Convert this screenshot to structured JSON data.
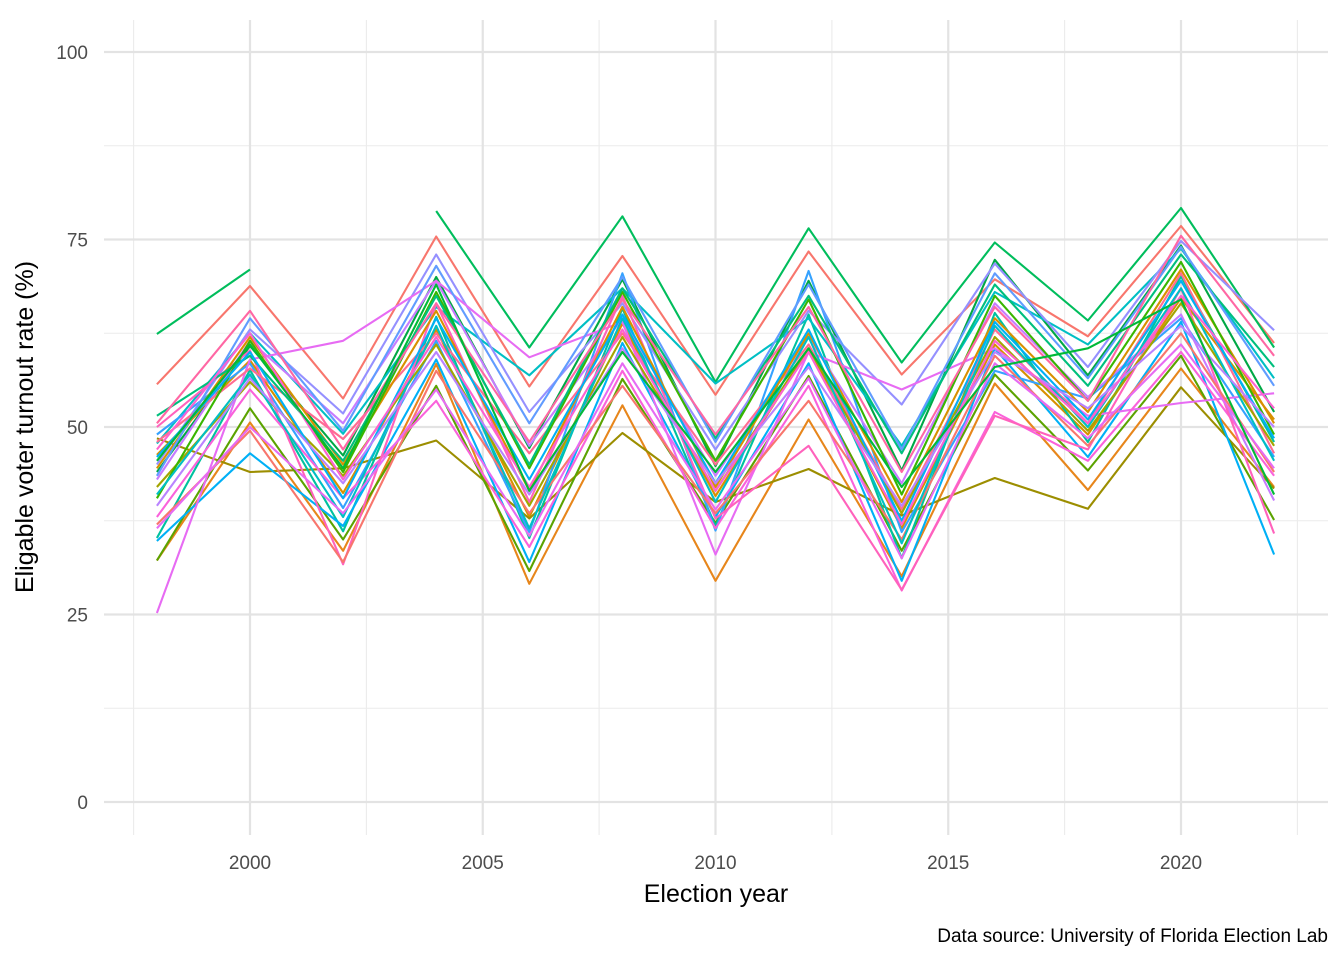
{
  "chart_data": {
    "type": "line",
    "xlabel": "Election year",
    "ylabel": "Eligable voter turnout rate (%)",
    "caption": "Data source: University of Florida Election Lab",
    "xlim": [
      1997.5,
      2022.5
    ],
    "ylim": [
      0,
      100
    ],
    "x_ticks": [
      2000,
      2005,
      2010,
      2015,
      2020
    ],
    "y_ticks": [
      0,
      25,
      50,
      75,
      100
    ],
    "grid": true,
    "legend": "none",
    "x": [
      1998,
      2000,
      2002,
      2004,
      2006,
      2008,
      2010,
      2012,
      2014,
      2016,
      2018,
      2020,
      2022
    ],
    "series": [
      {
        "color": "#F8766D",
        "values": [
          55.7,
          68.8,
          53.8,
          75.4,
          55.4,
          72.8,
          54.3,
          73.4,
          57.0,
          69.7,
          62.1,
          76.8,
          61.2
        ]
      },
      {
        "color": "#E7861B",
        "values": [
          32.2,
          50.6,
          33.5,
          58.4,
          29.1,
          52.9,
          29.5,
          51.0,
          30.1,
          55.8,
          41.6,
          57.8,
          42.0
        ]
      },
      {
        "color": "#D89000",
        "values": [
          46.3,
          58.9,
          41.2,
          63.0,
          38.0,
          63.8,
          40.8,
          60.3,
          36.5,
          61.0,
          49.0,
          67.2,
          51.0
        ]
      },
      {
        "color": "#9C8E00",
        "values": [
          48.5,
          44.0,
          44.5,
          48.2,
          37.8,
          49.2,
          40.0,
          44.4,
          38.2,
          43.2,
          39.1,
          55.3,
          41.8
        ]
      },
      {
        "color": "#5BA300",
        "values": [
          32.2,
          52.5,
          35.0,
          55.5,
          30.8,
          56.4,
          37.2,
          56.8,
          33.5,
          57.0,
          44.2,
          59.5,
          37.6
        ]
      },
      {
        "color": "#00A845",
        "values": [
          44.0,
          60.8,
          46.2,
          70.0,
          47.2,
          69.7,
          44.8,
          69.5,
          44.2,
          72.3,
          56.9,
          74.2,
          52.0
        ]
      },
      {
        "color": "#00BD5C",
        "values": [
          62.4,
          71.0,
          null,
          78.8,
          60.6,
          78.1,
          56.0,
          76.5,
          58.6,
          74.6,
          64.2,
          79.2,
          60.6
        ]
      },
      {
        "color": "#00C19F",
        "values": [
          35.2,
          57.6,
          36.1,
          64.7,
          35.2,
          65.8,
          36.8,
          65.0,
          32.5,
          65.2,
          48.0,
          70.1,
          48.0
        ]
      },
      {
        "color": "#00BFC4",
        "values": [
          47.8,
          62.5,
          49.1,
          66.0,
          56.9,
          68.5,
          55.8,
          64.5,
          47.5,
          68.0,
          61.0,
          73.8,
          56.5
        ]
      },
      {
        "color": "#00B0F6",
        "values": [
          34.8,
          46.5,
          36.8,
          59.0,
          32.0,
          61.2,
          38.0,
          58.5,
          29.5,
          60.5,
          46.0,
          64.0,
          33.0
        ]
      },
      {
        "color": "#35A2FF",
        "values": [
          49.0,
          58.5,
          39.2,
          61.5,
          36.0,
          70.5,
          36.2,
          70.8,
          36.0,
          57.5,
          53.8,
          64.5,
          46.0
        ]
      },
      {
        "color": "#9590FF",
        "values": [
          45.0,
          63.0,
          51.8,
          73.0,
          52.0,
          66.5,
          47.0,
          65.5,
          53.0,
          71.8,
          58.0,
          74.8,
          62.9
        ]
      },
      {
        "color": "#C77CFF",
        "values": [
          43.0,
          61.5,
          50.5,
          69.5,
          47.5,
          64.5,
          43.5,
          62.0,
          42.5,
          66.5,
          54.0,
          65.0,
          40.2
        ]
      },
      {
        "color": "#E76BF3",
        "values": [
          25.2,
          59.0,
          61.5,
          69.5,
          59.3,
          64.0,
          33.0,
          60.0,
          55.0,
          60.5,
          51.5,
          53.2,
          54.5
        ]
      },
      {
        "color": "#FA62DB",
        "values": [
          38.0,
          55.0,
          40.5,
          53.5,
          34.0,
          57.5,
          36.5,
          55.5,
          28.2,
          52.0,
          45.5,
          60.0,
          43.5
        ]
      },
      {
        "color": "#FF62BC",
        "values": [
          50.0,
          60.2,
          31.7,
          66.5,
          40.0,
          67.5,
          37.8,
          47.5,
          28.3,
          51.5,
          47.0,
          68.5,
          35.8
        ]
      },
      {
        "color": "#FF6C91",
        "values": [
          48.0,
          57.8,
          48.4,
          62.5,
          46.5,
          62.5,
          45.0,
          61.0,
          39.0,
          63.0,
          50.5,
          70.5,
          46.5
        ]
      },
      {
        "color": "#F8766D",
        "values": [
          37.0,
          49.5,
          32.0,
          57.5,
          38.5,
          55.5,
          38.5,
          53.5,
          35.0,
          59.5,
          47.5,
          62.5,
          44.0
        ]
      },
      {
        "color": "#D89000",
        "values": [
          44.5,
          62.0,
          45.0,
          65.5,
          41.5,
          66.0,
          42.0,
          62.5,
          40.0,
          64.5,
          52.0,
          71.0,
          50.5
        ]
      },
      {
        "color": "#A3A500",
        "values": [
          42.0,
          56.0,
          43.5,
          61.0,
          39.5,
          62.0,
          41.5,
          60.5,
          38.5,
          62.0,
          49.5,
          66.5,
          47.5
        ]
      },
      {
        "color": "#39B600",
        "values": [
          40.5,
          61.5,
          44.0,
          68.0,
          44.5,
          68.0,
          45.5,
          67.0,
          41.0,
          67.5,
          53.5,
          72.0,
          49.0
        ]
      },
      {
        "color": "#00BF7D",
        "values": [
          51.5,
          59.5,
          45.5,
          67.5,
          45.0,
          68.5,
          48.5,
          67.5,
          46.5,
          69.0,
          55.5,
          73.0,
          58.0
        ]
      },
      {
        "color": "#00BFC4",
        "values": [
          41.0,
          57.0,
          38.0,
          63.5,
          36.5,
          64.5,
          40.0,
          62.0,
          34.5,
          63.5,
          50.0,
          68.5,
          45.5
        ]
      },
      {
        "color": "#00B0F6",
        "values": [
          46.0,
          60.0,
          40.5,
          64.5,
          43.0,
          65.0,
          42.5,
          63.0,
          37.5,
          64.0,
          51.0,
          69.5,
          48.5
        ]
      },
      {
        "color": "#619CFF",
        "values": [
          43.5,
          64.5,
          49.5,
          71.5,
          50.5,
          70.0,
          48.0,
          69.0,
          47.0,
          70.5,
          56.5,
          74.0,
          55.5
        ]
      },
      {
        "color": "#B983FF",
        "values": [
          39.5,
          56.5,
          42.5,
          60.0,
          41.0,
          60.5,
          42.5,
          58.0,
          39.5,
          60.0,
          52.5,
          63.5,
          50.0
        ]
      },
      {
        "color": "#E76BF3",
        "values": [
          36.5,
          50.0,
          38.5,
          55.0,
          35.5,
          58.5,
          39.0,
          56.5,
          32.5,
          58.5,
          48.5,
          61.0,
          44.5
        ]
      },
      {
        "color": "#FD61D1",
        "values": [
          47.0,
          62.5,
          43.0,
          62.0,
          42.0,
          63.0,
          41.5,
          60.0,
          37.0,
          61.5,
          50.5,
          67.5,
          52.5
        ]
      },
      {
        "color": "#FF67A4",
        "values": [
          50.5,
          65.5,
          47.0,
          66.5,
          48.0,
          67.0,
          49.0,
          66.0,
          44.0,
          66.0,
          53.5,
          75.5,
          59.5
        ]
      },
      {
        "color": "#00BA38",
        "values": [
          45.5,
          61.0,
          44.5,
          69.0,
          41.5,
          60.0,
          44.0,
          60.5,
          42.0,
          58.0,
          60.5,
          67.0,
          41.0
        ]
      }
    ]
  }
}
